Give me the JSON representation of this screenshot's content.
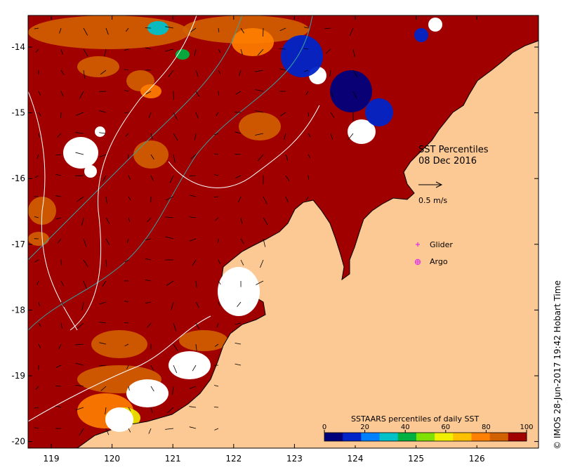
{
  "map": {
    "title": "SST Percentiles",
    "date": "08 Dec 2016",
    "vector_scale_label": "0.5 m/s",
    "legend_markers": [
      {
        "label": "Glider",
        "symbol": "plus",
        "color": "#e040e0"
      },
      {
        "label": "Argo",
        "symbol": "circle-plus",
        "color": "#e040e0"
      }
    ],
    "credit": "© IMOS 28-Jun-2017 19:42 Hobart Time",
    "colorbar": {
      "title": "SSTAARS percentiles of daily SST",
      "colors": [
        "#00007a",
        "#0024c8",
        "#0080ff",
        "#00c0c8",
        "#00b040",
        "#80e000",
        "#f0f000",
        "#ffc000",
        "#ff8000",
        "#d06000",
        "#a00000"
      ],
      "tick_labels": [
        "0",
        "20",
        "40",
        "60",
        "80",
        "100"
      ]
    },
    "x_ticks": [
      "119",
      "120",
      "121",
      "122",
      "123",
      "124",
      "125",
      "126"
    ],
    "y_ticks": [
      "-14",
      "-15",
      "-16",
      "-17",
      "-18",
      "-19",
      "-20"
    ],
    "palette": {
      "land": "#fcc894",
      "sea_warm": "#a00000",
      "sea_mid": "#d06000",
      "sea_orange": "#ff8000",
      "missing": "#ffffff",
      "coast_edge": "#000000",
      "contour": "#ffffff",
      "bathymetry": "#3aa0a0"
    }
  },
  "chart_data": {
    "type": "heatmap",
    "title": "SST Percentiles",
    "subtitle": "08 Dec 2016",
    "x_ticks": [
      119,
      120,
      121,
      122,
      123,
      124,
      125,
      126
    ],
    "y_ticks": [
      -14,
      -15,
      -16,
      -17,
      -18,
      -19,
      -20
    ],
    "xlim": [
      118.6,
      126.75
    ],
    "ylim": [
      -20.1,
      -13.5
    ],
    "colorbar_range": [
      0,
      100
    ],
    "colorbar_label": "SSTAARS percentiles of daily SST"
  }
}
